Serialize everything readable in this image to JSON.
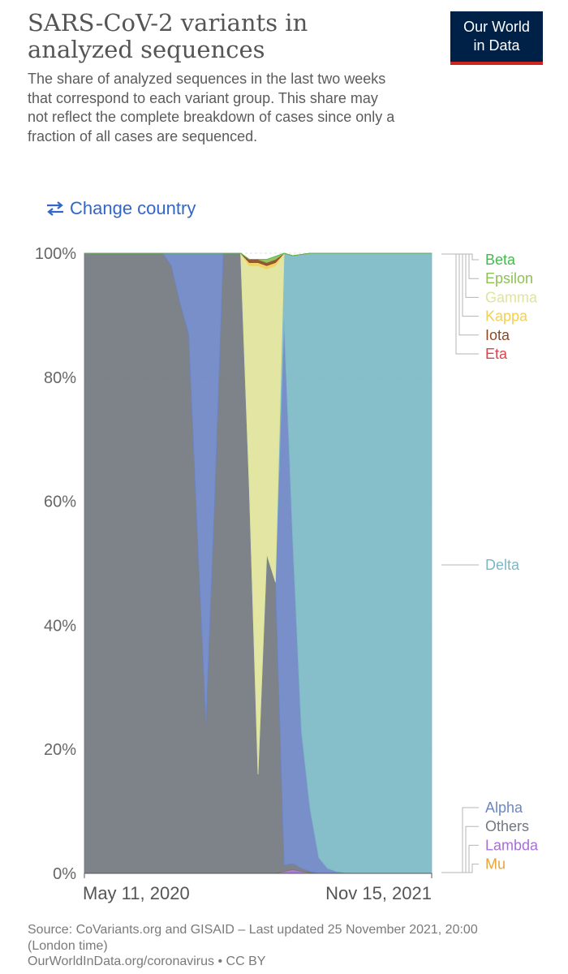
{
  "header": {
    "title": "SARS-CoV-2 variants in analyzed sequences",
    "subtitle": "The share of analyzed sequences in the last two weeks that correspond to each variant group. This share may not reflect the complete breakdown of cases since only a fraction of all cases are sequenced."
  },
  "logo": {
    "line1": "Our World",
    "line2": "in Data"
  },
  "controls": {
    "change_country": "Change country",
    "icon": "swap-arrows-icon"
  },
  "footer": {
    "source": "Source: CoVariants.org and GISAID – Last updated 25 November 2021, 20:00 (London time)",
    "link": "OurWorldInData.org/coronavirus • CC BY"
  },
  "colors": {
    "Others": "#73777f",
    "Alpha": "#6d86c4",
    "Gamma": "#dfe49a",
    "Delta": "#7cb8c4",
    "Mu": "#e8a33b",
    "Lambda": "#a56fd6",
    "Eta": "#d9454d",
    "Iota": "#8a4a25",
    "Kappa": "#f2cf55",
    "Epsilon": "#8fc055",
    "Beta": "#46b94e"
  },
  "chart_data": {
    "type": "area",
    "stacked": true,
    "x_tick_labels": [
      "May 11, 2020",
      "Nov 15, 2021"
    ],
    "y_tick_labels": [
      "0%",
      "20%",
      "40%",
      "60%",
      "80%",
      "100%"
    ],
    "ylim": [
      0,
      100
    ],
    "grid": true,
    "x": [
      "2020-05-11",
      "2020-05-25",
      "2020-06-08",
      "2020-06-22",
      "2020-07-06",
      "2020-07-20",
      "2020-08-03",
      "2020-08-17",
      "2020-08-31",
      "2020-09-14",
      "2020-09-28",
      "2020-10-12",
      "2020-10-26",
      "2020-11-09",
      "2020-11-23",
      "2020-12-07",
      "2020-12-21",
      "2021-01-04",
      "2021-01-18",
      "2021-02-01",
      "2021-02-15",
      "2021-03-01",
      "2021-03-15",
      "2021-03-29",
      "2021-04-12",
      "2021-04-26",
      "2021-05-10",
      "2021-05-24",
      "2021-06-07",
      "2021-06-21",
      "2021-07-05",
      "2021-07-19",
      "2021-08-02",
      "2021-08-16",
      "2021-08-30",
      "2021-09-13",
      "2021-09-27",
      "2021-10-11",
      "2021-10-25",
      "2021-11-08",
      "2021-11-15"
    ],
    "series": [
      {
        "name": "Lambda",
        "values": [
          0,
          0,
          0,
          0,
          0,
          0,
          0,
          0,
          0,
          0,
          0,
          0,
          0,
          0,
          0,
          0,
          0,
          0,
          0,
          0,
          0,
          0,
          0,
          0.3,
          0.6,
          0.3,
          0.1,
          0,
          0,
          0,
          0,
          0,
          0,
          0,
          0,
          0,
          0,
          0,
          0,
          0,
          0
        ]
      },
      {
        "name": "Mu",
        "values": [
          0,
          0,
          0,
          0,
          0,
          0,
          0,
          0,
          0,
          0,
          0,
          0,
          0,
          0,
          0,
          0,
          0,
          0,
          0,
          0,
          0,
          0,
          0,
          0,
          0,
          0,
          0,
          0,
          0,
          0,
          0,
          0,
          0,
          0,
          0,
          0,
          0,
          0,
          0,
          0,
          0
        ]
      },
      {
        "name": "Others",
        "values": [
          100,
          100,
          100,
          100,
          100,
          100,
          100,
          100,
          100,
          100,
          98,
          92,
          87,
          55,
          24,
          60,
          100,
          100,
          100,
          62,
          16,
          51.5,
          47,
          1,
          1,
          0.5,
          0.2,
          0,
          0,
          0,
          0,
          0,
          0,
          0,
          0,
          0,
          0,
          0,
          0,
          0,
          0
        ]
      },
      {
        "name": "Alpha",
        "values": [
          0,
          0,
          0,
          0,
          0,
          0,
          0,
          0,
          0,
          0,
          2,
          8,
          13,
          45,
          76,
          40,
          0,
          0,
          0,
          0,
          0,
          0,
          0,
          87.7,
          52,
          22,
          10,
          2.5,
          0.8,
          0.3,
          0.1,
          0,
          0,
          0,
          0,
          0,
          0,
          0,
          0,
          0,
          0
        ]
      },
      {
        "name": "Delta",
        "values": [
          0,
          0,
          0,
          0,
          0,
          0,
          0,
          0,
          0,
          0,
          0,
          0,
          0,
          0,
          0,
          0,
          0,
          0,
          0,
          0,
          0,
          0,
          0,
          11,
          46,
          77,
          89.7,
          97.5,
          99.2,
          99.7,
          99.9,
          100,
          100,
          100,
          100,
          100,
          100,
          100,
          100,
          100,
          100
        ]
      },
      {
        "name": "Gamma",
        "values": [
          0,
          0,
          0,
          0,
          0,
          0,
          0,
          0,
          0,
          0,
          0,
          0,
          0,
          0,
          0,
          0,
          0,
          0,
          0,
          36,
          82,
          46,
          51,
          0,
          0,
          0,
          0,
          0,
          0,
          0,
          0,
          0,
          0,
          0,
          0,
          0,
          0,
          0,
          0,
          0,
          0
        ]
      },
      {
        "name": "Kappa",
        "values": [
          0,
          0,
          0,
          0,
          0,
          0,
          0,
          0,
          0,
          0,
          0,
          0,
          0,
          0,
          0,
          0,
          0,
          0,
          0,
          0.5,
          0.5,
          0.5,
          0.5,
          0,
          0,
          0,
          0,
          0,
          0,
          0,
          0,
          0,
          0,
          0,
          0,
          0,
          0,
          0,
          0,
          0,
          0
        ]
      },
      {
        "name": "Iota",
        "values": [
          0,
          0,
          0,
          0,
          0,
          0,
          0,
          0,
          0,
          0,
          0,
          0,
          0,
          0,
          0,
          0,
          0,
          0,
          0,
          0.5,
          0.5,
          0.5,
          0.5,
          0,
          0,
          0,
          0,
          0,
          0,
          0,
          0,
          0,
          0,
          0,
          0,
          0,
          0,
          0,
          0,
          0,
          0
        ]
      },
      {
        "name": "Eta",
        "values": [
          0,
          0,
          0,
          0,
          0,
          0,
          0,
          0,
          0,
          0,
          0,
          0,
          0,
          0,
          0,
          0,
          0,
          0,
          0,
          0,
          0,
          0,
          0,
          0,
          0,
          0,
          0,
          0,
          0,
          0,
          0,
          0,
          0,
          0,
          0,
          0,
          0,
          0,
          0,
          0,
          0
        ]
      },
      {
        "name": "Epsilon",
        "values": [
          0,
          0,
          0,
          0,
          0,
          0,
          0,
          0,
          0,
          0,
          0,
          0,
          0,
          0,
          0,
          0,
          0,
          0,
          0,
          0,
          0,
          0.5,
          0.5,
          0,
          0,
          0,
          0,
          0,
          0,
          0,
          0,
          0,
          0,
          0,
          0,
          0,
          0,
          0,
          0,
          0,
          0
        ]
      },
      {
        "name": "Beta",
        "values": [
          0,
          0,
          0,
          0,
          0,
          0,
          0,
          0,
          0,
          0,
          0,
          0,
          0,
          0,
          0,
          0,
          0,
          0,
          0,
          0,
          0,
          0,
          0,
          0,
          0,
          0,
          0,
          0,
          0,
          0,
          0,
          0,
          0,
          0,
          0,
          0,
          0,
          0,
          0,
          0,
          0
        ]
      }
    ],
    "legend_top": [
      "Beta",
      "Epsilon",
      "Gamma",
      "Kappa",
      "Iota",
      "Eta"
    ],
    "legend_middle": [
      "Delta"
    ],
    "legend_bottom": [
      "Alpha",
      "Others",
      "Lambda",
      "Mu"
    ]
  }
}
